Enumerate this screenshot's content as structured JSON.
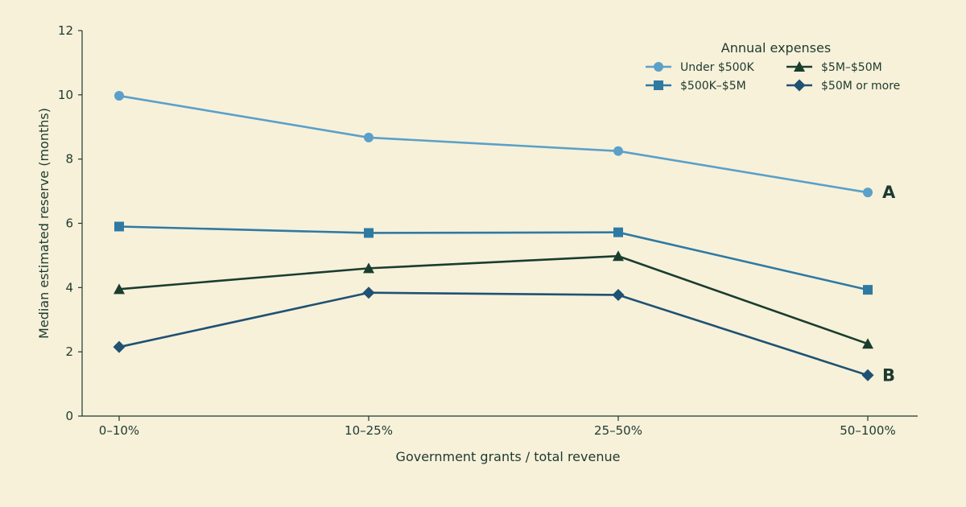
{
  "chart_data": {
    "type": "line",
    "xlabel": "Government grants / total revenue",
    "ylabel": "Median estimated reserve (months)",
    "categories": [
      "0–10%",
      "10–25%",
      "25–50%",
      "50–100%"
    ],
    "ylim": [
      0,
      12
    ],
    "yticks": [
      0,
      2,
      4,
      6,
      8,
      10,
      12
    ],
    "grid": false,
    "legend": {
      "title": "Annual expenses",
      "placement": "top-right"
    },
    "series": [
      {
        "name": "Under $500K",
        "values": [
          9.97,
          8.67,
          8.25,
          6.96
        ],
        "color": "#5ba0c8",
        "marker": "circle"
      },
      {
        "name": "$500K–$5M",
        "values": [
          5.9,
          5.7,
          5.72,
          3.93
        ],
        "color": "#2f7aa3",
        "marker": "square"
      },
      {
        "name": "$5M–$50M",
        "values": [
          3.95,
          4.6,
          4.98,
          2.25
        ],
        "color": "#1a3d2e",
        "marker": "triangle"
      },
      {
        "name": "$50M or more",
        "values": [
          2.15,
          3.84,
          3.77,
          1.27
        ],
        "color": "#1f5273",
        "marker": "diamond"
      }
    ],
    "annotations": [
      {
        "text": "A",
        "series": 0,
        "index": 3
      },
      {
        "text": "B",
        "series": 3,
        "index": 3
      }
    ]
  }
}
